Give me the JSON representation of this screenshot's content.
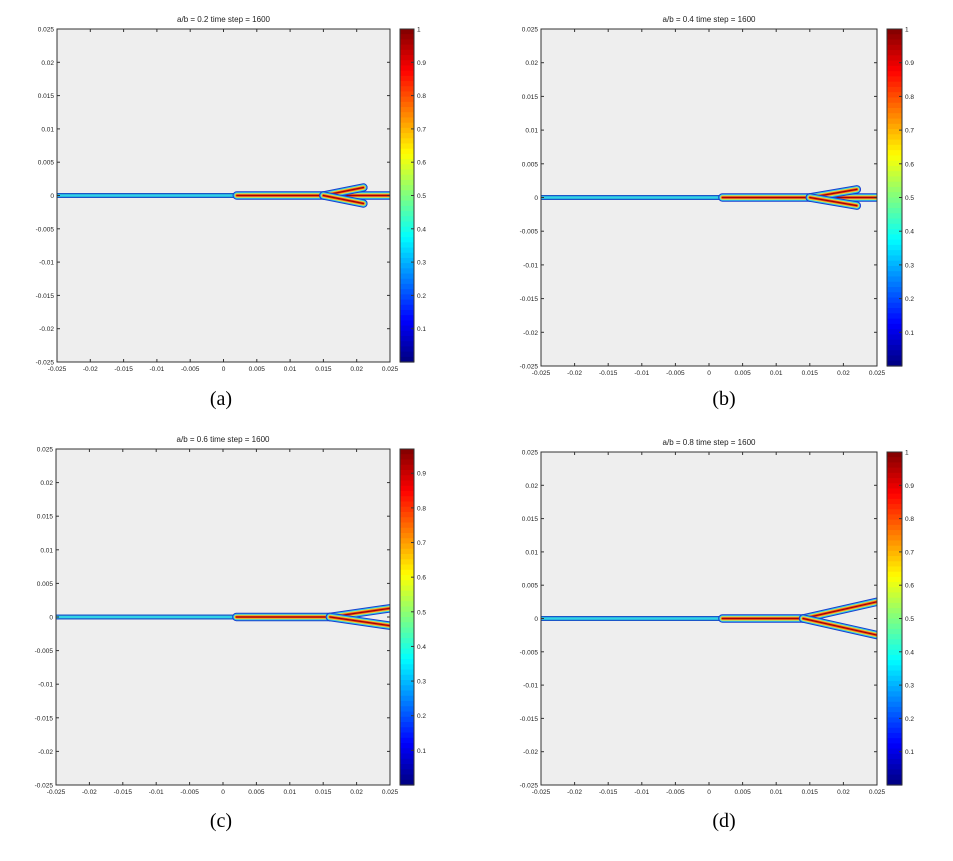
{
  "panels": [
    {
      "title": "a/b = 0.2    time step = 1600",
      "caption": "(a)",
      "ratio": 0.2,
      "chart_data": {
        "type": "heatmap",
        "title": "a/b = 0.2    time step = 1600",
        "xlim": [
          -0.025,
          0.025
        ],
        "ylim": [
          -0.025,
          0.025
        ],
        "xticks": [
          "-0.025",
          "-0.02",
          "-0.015",
          "-0.01",
          "-0.005",
          "0",
          "0.005",
          "0.01",
          "0.015",
          "0.02",
          "0.025"
        ],
        "yticks": [
          "0.025",
          "0.02",
          "0.015",
          "0.01",
          "0.005",
          "0",
          "-0.005",
          "-0.01",
          "-0.015",
          "-0.02",
          "-0.025"
        ],
        "colorbar_ticks": [
          "1",
          "0.9",
          "0.8",
          "0.7",
          "0.6",
          "0.5",
          "0.4",
          "0.3",
          "0.2",
          "0.1"
        ],
        "clim": [
          0,
          1
        ],
        "colormap": "jet",
        "background": "#eeeeee",
        "crack_path": {
          "initial_crack": [
            [
              -0.025,
              0
            ],
            [
              0.002,
              0
            ]
          ],
          "main_branch": [
            [
              0.002,
              0
            ],
            [
              0.025,
              0
            ]
          ],
          "branches": [
            {
              "path": [
                [
                  0.015,
                  0
                ],
                [
                  0.021,
                  0.0012
                ]
              ]
            },
            {
              "path": [
                [
                  0.015,
                  0
                ],
                [
                  0.021,
                  -0.0012
                ]
              ]
            }
          ]
        }
      }
    },
    {
      "title": "a/b = 0.4    time step = 1600",
      "caption": "(b)",
      "ratio": 0.4,
      "chart_data": {
        "type": "heatmap",
        "title": "a/b = 0.4    time step = 1600",
        "xlim": [
          -0.025,
          0.025
        ],
        "ylim": [
          -0.025,
          0.025
        ],
        "xticks": [
          "-0.025",
          "-0.02",
          "-0.015",
          "-0.01",
          "-0.005",
          "0",
          "0.005",
          "0.01",
          "0.015",
          "0.02",
          "0.025"
        ],
        "yticks": [
          "0.025",
          "0.02",
          "0.015",
          "0.01",
          "0.005",
          "0",
          "-0.005",
          "-0.01",
          "-0.015",
          "-0.02",
          "-0.025"
        ],
        "colorbar_ticks": [
          "1",
          "0.9",
          "0.8",
          "0.7",
          "0.6",
          "0.5",
          "0.4",
          "0.3",
          "0.2",
          "0.1"
        ],
        "clim": [
          0,
          1
        ],
        "colormap": "jet",
        "background": "#eeeeee",
        "crack_path": {
          "initial_crack": [
            [
              -0.025,
              0
            ],
            [
              0.002,
              0
            ]
          ],
          "main_branch": [
            [
              0.002,
              0
            ],
            [
              0.025,
              0
            ]
          ],
          "branches": [
            {
              "path": [
                [
                  0.015,
                  0
                ],
                [
                  0.022,
                  0.0012
                ]
              ]
            },
            {
              "path": [
                [
                  0.015,
                  0
                ],
                [
                  0.022,
                  -0.0012
                ]
              ]
            }
          ]
        }
      }
    },
    {
      "title": "a/b = 0.6    time step = 1600",
      "caption": "(c)",
      "ratio": 0.6,
      "chart_data": {
        "type": "heatmap",
        "title": "a/b = 0.6    time step = 1600",
        "xlim": [
          -0.025,
          0.025
        ],
        "ylim": [
          -0.025,
          0.025
        ],
        "xticks": [
          "-0.025",
          "-0.02",
          "-0.015",
          "-0.01",
          "-0.005",
          "0",
          "0.005",
          "0.01",
          "0.015",
          "0.02",
          "0.025"
        ],
        "yticks": [
          "0.025",
          "0.02",
          "0.015",
          "0.01",
          "0.005",
          "0",
          "-0.005",
          "-0.01",
          "-0.015",
          "-0.02",
          "-0.025"
        ],
        "colorbar_ticks": [
          "0.9",
          "0.8",
          "0.7",
          "0.6",
          "0.5",
          "0.4",
          "0.3",
          "0.2",
          "0.1"
        ],
        "clim": [
          0,
          0.97
        ],
        "colormap": "jet",
        "background": "#eeeeee",
        "crack_path": {
          "initial_crack": [
            [
              -0.025,
              0
            ],
            [
              0.002,
              0
            ]
          ],
          "main_branch": [
            [
              0.002,
              0
            ],
            [
              0.016,
              0
            ]
          ],
          "branches": [
            {
              "path": [
                [
                  0.016,
                  0
                ],
                [
                  0.025,
                  0.0013
                ]
              ]
            },
            {
              "path": [
                [
                  0.016,
                  0
                ],
                [
                  0.025,
                  -0.0013
                ]
              ]
            }
          ]
        }
      }
    },
    {
      "title": "a/b = 0.8    time step = 1600",
      "caption": "(d)",
      "ratio": 0.8,
      "chart_data": {
        "type": "heatmap",
        "title": "a/b = 0.8    time step = 1600",
        "xlim": [
          -0.025,
          0.025
        ],
        "ylim": [
          -0.025,
          0.025
        ],
        "xticks": [
          "-0.025",
          "-0.02",
          "-0.015",
          "-0.01",
          "-0.005",
          "0",
          "0.005",
          "0.01",
          "0.015",
          "0.02",
          "0.025"
        ],
        "yticks": [
          "0.025",
          "0.02",
          "0.015",
          "0.01",
          "0.005",
          "0",
          "-0.005",
          "-0.01",
          "-0.015",
          "-0.02",
          "-0.025"
        ],
        "colorbar_ticks": [
          "1",
          "0.9",
          "0.8",
          "0.7",
          "0.6",
          "0.5",
          "0.4",
          "0.3",
          "0.2",
          "0.1"
        ],
        "clim": [
          0,
          1
        ],
        "colormap": "jet",
        "background": "#eeeeee",
        "crack_path": {
          "initial_crack": [
            [
              -0.025,
              0
            ],
            [
              0.002,
              0
            ]
          ],
          "main_branch": [
            [
              0.002,
              0
            ],
            [
              0.014,
              0
            ]
          ],
          "branches": [
            {
              "path": [
                [
                  0.014,
                  0
                ],
                [
                  0.025,
                  0.0025
                ]
              ]
            },
            {
              "path": [
                [
                  0.014,
                  0
                ],
                [
                  0.025,
                  -0.0025
                ]
              ]
            }
          ]
        }
      }
    }
  ]
}
